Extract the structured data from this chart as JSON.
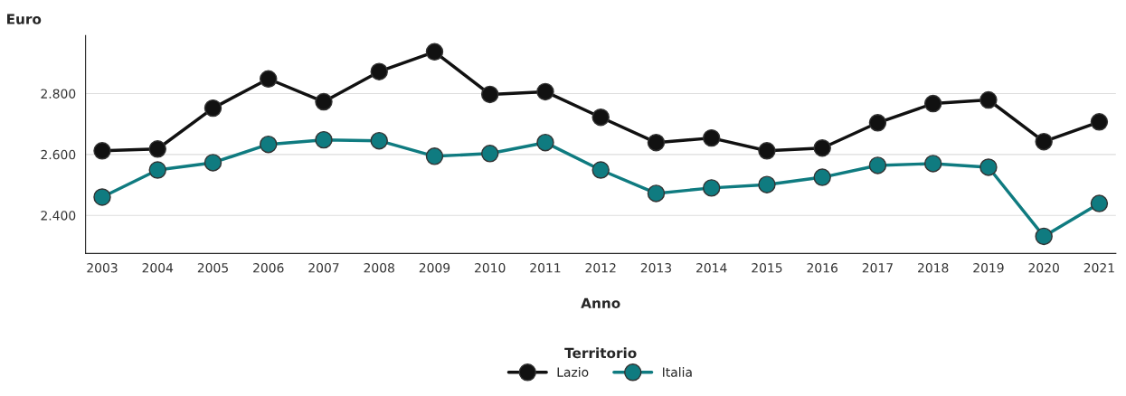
{
  "chart_data": {
    "type": "line",
    "ylabel": "Euro",
    "xlabel": "Anno",
    "legend_title": "Territorio",
    "categories": [
      "2003",
      "2004",
      "2005",
      "2006",
      "2007",
      "2008",
      "2009",
      "2010",
      "2011",
      "2012",
      "2013",
      "2014",
      "2015",
      "2016",
      "2017",
      "2018",
      "2019",
      "2020",
      "2021"
    ],
    "series": [
      {
        "name": "Lazio",
        "color": "#111111",
        "values": [
          2612,
          2618,
          2752,
          2848,
          2773,
          2872,
          2937,
          2797,
          2806,
          2722,
          2639,
          2654,
          2612,
          2621,
          2704,
          2767,
          2779,
          2642,
          2707
        ]
      },
      {
        "name": "Italia",
        "color": "#0f7b80",
        "values": [
          2460,
          2549,
          2573,
          2633,
          2648,
          2645,
          2594,
          2603,
          2639,
          2549,
          2472,
          2490,
          2501,
          2525,
          2564,
          2570,
          2558,
          2331,
          2439
        ]
      }
    ],
    "ylim": [
      2275,
      2990
    ],
    "yticks": [
      {
        "value": 2400,
        "label": "2.400"
      },
      {
        "value": 2600,
        "label": "2.600"
      },
      {
        "value": 2800,
        "label": "2.800"
      }
    ],
    "grid": "y",
    "legend": "bottom",
    "marker": "circle",
    "line_style": "solid"
  }
}
